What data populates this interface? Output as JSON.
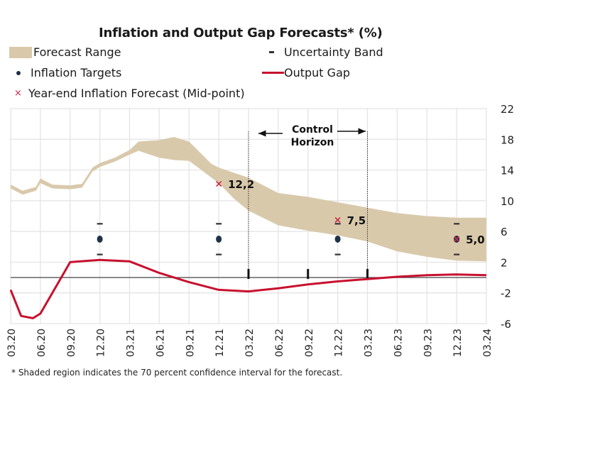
{
  "chart_data": {
    "type": "line",
    "title": "Inflation and Output Gap Forecasts* (%)",
    "footnote": "* Shaded region indicates the 70 percent confidence interval for the forecast.",
    "legend": {
      "forecast_range": "Forecast Range",
      "uncertainty_band": "Uncertainty Band",
      "inflation_targets": "Inflation Targets",
      "output_gap": "Output Gap",
      "year_end_forecast": "Year-end Inflation Forecast (Mid-point)"
    },
    "x_tick_labels": [
      "03.20",
      "06.20",
      "09.20",
      "12.20",
      "03.21",
      "06.21",
      "09.21",
      "12.21",
      "03.22",
      "06.22",
      "09.22",
      "12.22",
      "03.23",
      "06.23",
      "09.23",
      "12.23",
      "03.24"
    ],
    "xlim": [
      0,
      16
    ],
    "y_axis": {
      "position": "right",
      "ticks": [
        22,
        18,
        14,
        10,
        6,
        2,
        -2,
        -6
      ],
      "ylim": [
        -6,
        22
      ]
    },
    "grid": true,
    "annotation": {
      "line1": "Control",
      "line2": "Horizon",
      "from_quarter": 8,
      "to_quarter": 12,
      "tick_quarters": [
        8,
        10,
        12
      ]
    },
    "forecast_range": {
      "upper": [
        [
          0,
          12.1
        ],
        [
          0.4,
          11.3
        ],
        [
          0.85,
          11.8
        ],
        [
          1,
          12.9
        ],
        [
          1.4,
          12.1
        ],
        [
          2,
          12.0
        ],
        [
          2.4,
          12.2
        ],
        [
          2.75,
          14.3
        ],
        [
          3,
          14.9
        ],
        [
          3.5,
          15.6
        ],
        [
          4,
          16.6
        ],
        [
          4.3,
          17.7
        ],
        [
          5,
          17.9
        ],
        [
          5.5,
          18.3
        ],
        [
          6,
          17.7
        ],
        [
          6.75,
          14.8
        ],
        [
          7,
          14.3
        ],
        [
          8,
          13.0
        ],
        [
          9,
          11.0
        ],
        [
          10,
          10.5
        ],
        [
          11,
          9.8
        ],
        [
          12,
          9.1
        ],
        [
          13,
          8.4
        ],
        [
          14,
          8.0
        ],
        [
          15,
          7.8
        ],
        [
          16,
          7.8
        ]
      ],
      "lower": [
        [
          0,
          11.6
        ],
        [
          0.4,
          10.8
        ],
        [
          0.85,
          11.3
        ],
        [
          1,
          12.3
        ],
        [
          1.4,
          11.6
        ],
        [
          2,
          11.5
        ],
        [
          2.4,
          11.7
        ],
        [
          2.75,
          13.8
        ],
        [
          3,
          14.4
        ],
        [
          3.5,
          15.1
        ],
        [
          4,
          16.0
        ],
        [
          4.3,
          16.5
        ],
        [
          5,
          15.6
        ],
        [
          5.5,
          15.3
        ],
        [
          6,
          15.2
        ],
        [
          7,
          12.3
        ],
        [
          7.5,
          10.3
        ],
        [
          8,
          8.7
        ],
        [
          9,
          6.8
        ],
        [
          10,
          6.1
        ],
        [
          11,
          5.5
        ],
        [
          12,
          4.7
        ],
        [
          13,
          3.4
        ],
        [
          14,
          2.7
        ],
        [
          15,
          2.2
        ],
        [
          16,
          2.1
        ]
      ]
    },
    "output_gap": {
      "name": "Output Gap",
      "color": "#c8102e",
      "points": [
        [
          0,
          -1.6
        ],
        [
          0.35,
          -5.0
        ],
        [
          0.75,
          -5.3
        ],
        [
          1,
          -4.7
        ],
        [
          2,
          2.0
        ],
        [
          3,
          2.3
        ],
        [
          4,
          2.1
        ],
        [
          5,
          0.6
        ],
        [
          6,
          -0.6
        ],
        [
          7,
          -1.6
        ],
        [
          8,
          -1.8
        ],
        [
          9,
          -1.4
        ],
        [
          10,
          -0.9
        ],
        [
          11,
          -0.5
        ],
        [
          12,
          -0.2
        ],
        [
          13,
          0.1
        ],
        [
          14,
          0.3
        ],
        [
          15,
          0.4
        ],
        [
          16,
          0.3
        ]
      ]
    },
    "inflation_targets": [
      {
        "quarter": 3,
        "label": "12.20",
        "value": 5,
        "band_upper": 7,
        "band_lower": 3
      },
      {
        "quarter": 7,
        "label": "12.21",
        "value": 5,
        "band_upper": 7,
        "band_lower": 3
      },
      {
        "quarter": 11,
        "label": "12.22",
        "value": 5,
        "band_upper": 7,
        "band_lower": 3
      },
      {
        "quarter": 15,
        "label": "12.23",
        "value": 5,
        "band_upper": 7,
        "band_lower": 3
      }
    ],
    "year_end_forecasts": [
      {
        "quarter": 7,
        "value": 12.2,
        "label": "12,2"
      },
      {
        "quarter": 11,
        "value": 7.5,
        "label": "7,5"
      },
      {
        "quarter": 15,
        "value": 5.0,
        "label": "5,0"
      }
    ],
    "colors": {
      "forecast_range": "#d9c9ab",
      "target": "#1f3347",
      "year_end_marker": "#c8294a",
      "grid": "#e3e3e3",
      "zero_line": "#555555"
    }
  }
}
